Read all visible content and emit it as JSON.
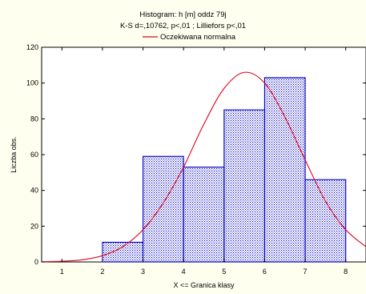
{
  "chart_data": {
    "type": "bar",
    "title": "Histogram: h [m] oddz 79j",
    "subtitle": "K-S d=,10762, p<,01 ; Lilliefors p<,01",
    "legend": {
      "placement": "top",
      "entries": [
        "Oczekiwana normalna"
      ]
    },
    "xlabel": "X <= Granica klasy",
    "ylabel": "Liczba obs.",
    "xlim": [
      0.5,
      8.5
    ],
    "ylim": [
      0,
      120
    ],
    "xticks": [
      "1",
      "2",
      "3",
      "4",
      "5",
      "6",
      "7",
      "8"
    ],
    "yticks": [
      "0",
      "20",
      "40",
      "60",
      "80",
      "100",
      "120"
    ],
    "grid": false,
    "bins": [
      {
        "from": 2,
        "to": 3,
        "count": 11
      },
      {
        "from": 3,
        "to": 4,
        "count": 59
      },
      {
        "from": 4,
        "to": 5,
        "count": 53
      },
      {
        "from": 5,
        "to": 6,
        "count": 85
      },
      {
        "from": 6,
        "to": 7,
        "count": 103
      },
      {
        "from": 7,
        "to": 8,
        "count": 46
      }
    ],
    "series": [
      {
        "name": "Oczekiwana normalna",
        "type": "line",
        "x": [
          0.5,
          1,
          1.5,
          2,
          2.5,
          3,
          3.5,
          4,
          4.5,
          5,
          5.5,
          6,
          6.5,
          7,
          7.5,
          8,
          8.5
        ],
        "values": [
          0.1,
          0.4,
          1.2,
          3.5,
          8.5,
          18,
          33,
          53,
          77,
          97,
          106,
          100,
          81,
          57,
          34,
          18,
          8.5
        ]
      }
    ],
    "colors": {
      "background": "#fffff0",
      "plot_background": "#ffffff",
      "bar_fill": "#c0c0f0",
      "bar_border": "#0000c0",
      "curve": "#e0001a",
      "axis": "#000000"
    }
  }
}
